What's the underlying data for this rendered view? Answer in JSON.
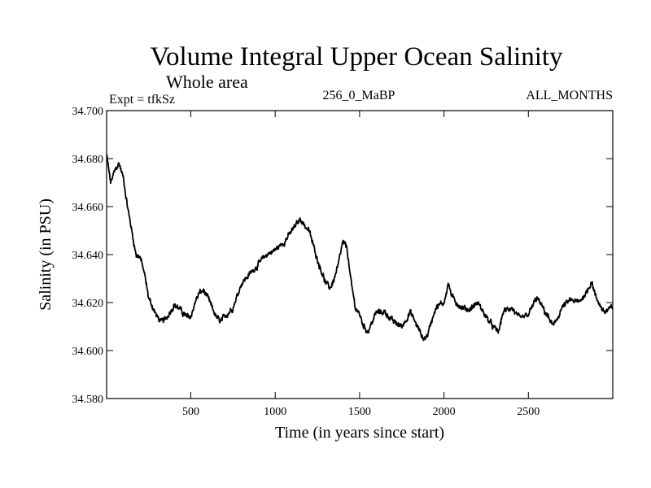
{
  "chart_data": {
    "type": "line",
    "title": "Volume Integral Upper Ocean Salinity",
    "subtitle": "Whole area",
    "header_left": "Expt = tfkSz",
    "header_center": "256_0_MaBP",
    "header_right": "ALL_MONTHS",
    "xlabel": "Time (in years since start)",
    "ylabel": "Salinity (in PSU)",
    "xlim": [
      1,
      3000
    ],
    "ylim": [
      34.58,
      34.7
    ],
    "xticks": [
      500,
      1000,
      1500,
      2000,
      2500
    ],
    "xtick_labels": [
      "500",
      "1000",
      "1500",
      "2000",
      "2500"
    ],
    "yticks": [
      34.58,
      34.6,
      34.62,
      34.64,
      34.66,
      34.68,
      34.7
    ],
    "ytick_labels": [
      "34.580",
      "34.600",
      "34.620",
      "34.640",
      "34.660",
      "34.680",
      "34.700"
    ],
    "grid": false,
    "series": [
      {
        "name": "salinity",
        "x": [
          0,
          25,
          50,
          75,
          100,
          125,
          150,
          175,
          200,
          225,
          250,
          275,
          300,
          325,
          350,
          375,
          400,
          425,
          450,
          475,
          500,
          525,
          550,
          575,
          600,
          625,
          650,
          675,
          700,
          725,
          750,
          800,
          850,
          900,
          950,
          1000,
          1050,
          1100,
          1150,
          1175,
          1200,
          1225,
          1250,
          1275,
          1300,
          1325,
          1350,
          1375,
          1400,
          1425,
          1450,
          1475,
          1500,
          1525,
          1550,
          1575,
          1600,
          1650,
          1700,
          1750,
          1800,
          1850,
          1875,
          1900,
          1950,
          2000,
          2025,
          2050,
          2100,
          2150,
          2200,
          2250,
          2300,
          2325,
          2350,
          2400,
          2450,
          2500,
          2550,
          2600,
          2650,
          2700,
          2750,
          2800,
          2850,
          2875,
          2900,
          2950,
          3000
        ],
        "values": [
          34.682,
          34.67,
          34.675,
          34.678,
          34.672,
          34.66,
          34.65,
          34.64,
          34.639,
          34.632,
          34.622,
          34.618,
          34.614,
          34.612,
          34.613,
          34.616,
          34.619,
          34.618,
          34.616,
          34.614,
          34.614,
          34.62,
          34.624,
          34.625,
          34.622,
          34.618,
          34.614,
          34.612,
          34.614,
          34.616,
          34.618,
          34.628,
          34.632,
          34.636,
          34.64,
          34.642,
          34.645,
          34.65,
          34.655,
          34.652,
          34.65,
          34.644,
          34.638,
          34.633,
          34.628,
          34.626,
          34.63,
          34.636,
          34.645,
          34.643,
          34.628,
          34.618,
          34.615,
          34.61,
          34.608,
          34.612,
          34.616,
          34.616,
          34.612,
          34.61,
          34.616,
          34.609,
          34.605,
          34.606,
          34.618,
          34.62,
          34.628,
          34.622,
          34.618,
          34.617,
          34.62,
          34.614,
          34.609,
          34.608,
          34.616,
          34.618,
          34.613,
          34.615,
          34.622,
          34.616,
          34.61,
          34.618,
          34.621,
          34.62,
          34.625,
          34.629,
          34.622,
          34.616,
          34.618
        ]
      }
    ]
  }
}
